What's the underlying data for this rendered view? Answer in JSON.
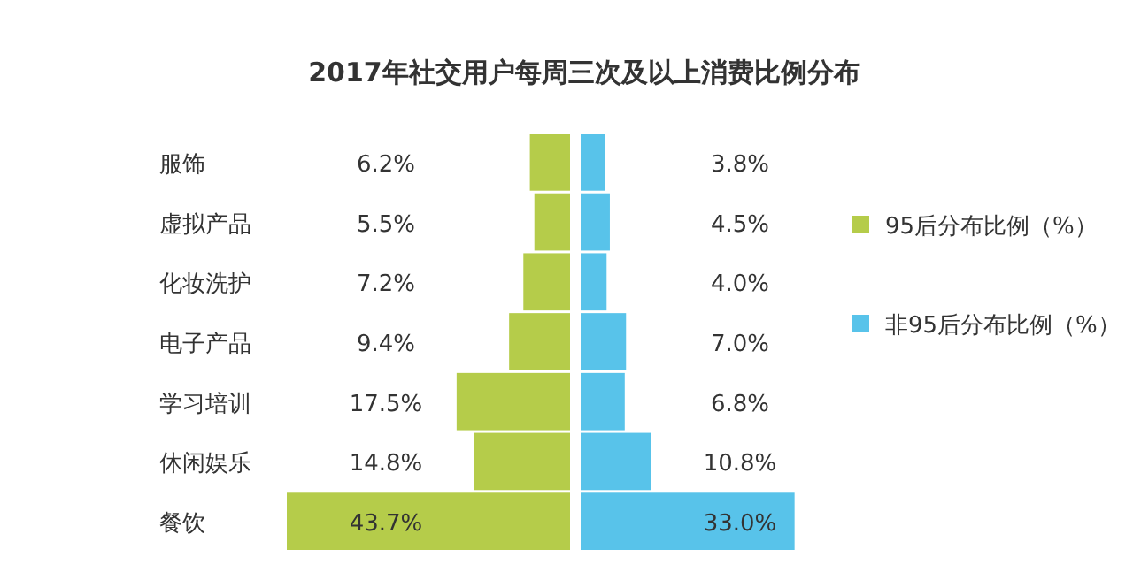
{
  "chart_data": [
    {
      "type": "bar",
      "orientation": "horizontal",
      "title": "2017年社交用户每周三次及以上消费比例分布",
      "categories": [
        "服饰",
        "虚拟产品",
        "化妆洗护",
        "电子产品",
        "学习培训",
        "休闲娱乐",
        "餐饮"
      ],
      "series": [
        {
          "name": "95后分布比例（%）",
          "color": "#b5cc4a",
          "values": [
            6.2,
            5.5,
            7.2,
            9.4,
            17.5,
            14.8,
            43.7
          ],
          "value_labels": [
            "6.2%",
            "5.5%",
            "7.2%",
            "9.4%",
            "17.5%",
            "14.8%",
            "43.7%"
          ]
        }
      ],
      "legend": "right"
    },
    {
      "type": "bar",
      "orientation": "horizontal",
      "categories": [
        null,
        null,
        null,
        null,
        null,
        null,
        null
      ],
      "series": [
        {
          "name": "非95后分布比例（%）",
          "color": "#58c3ea",
          "values": [
            3.8,
            4.5,
            4.0,
            7.0,
            6.8,
            10.8,
            33.0
          ],
          "value_labels": [
            "3.8%",
            "4.5%",
            "4.0%",
            "7.0%",
            "6.8%",
            "10.8%",
            "33.0%"
          ]
        }
      ],
      "legend": "right"
    }
  ]
}
